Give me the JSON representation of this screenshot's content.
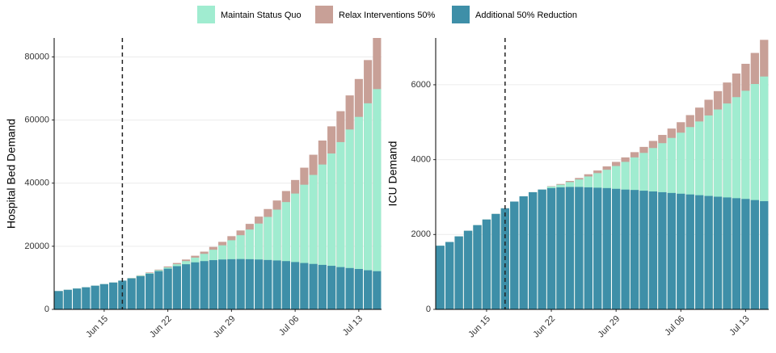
{
  "chart_data": [
    {
      "type": "bar",
      "y_label": "Hospital Bed Demand",
      "categories": [
        null,
        null,
        null,
        null,
        null,
        "Jun 15",
        null,
        null,
        null,
        null,
        null,
        null,
        "Jun 22",
        null,
        null,
        null,
        null,
        null,
        null,
        "Jun 29",
        null,
        null,
        null,
        null,
        null,
        null,
        "Jul 06",
        null,
        null,
        null,
        null,
        null,
        null,
        "Jul 13",
        null,
        null
      ],
      "vline_at": 7,
      "ylim": [
        0,
        86000
      ],
      "yticks": [
        0,
        20000,
        40000,
        60000,
        80000
      ],
      "series": [
        {
          "name": "Maintain Status Quo",
          "color": "#a0ecd0",
          "values": [
            5800,
            6200,
            6600,
            7000,
            7500,
            8000,
            8500,
            9100,
            9900,
            10700,
            11500,
            12400,
            13300,
            14300,
            15300,
            16400,
            17600,
            18900,
            20300,
            21900,
            23500,
            25300,
            27200,
            29300,
            31600,
            34000,
            36700,
            39500,
            42600,
            45900,
            49400,
            53000,
            57000,
            61000,
            65300,
            69800
          ]
        },
        {
          "name": "Relax Interventions 50%",
          "color": "#c8a097",
          "values": [
            5800,
            6200,
            6600,
            7000,
            7500,
            8000,
            8500,
            9100,
            9950,
            10800,
            11700,
            12600,
            13600,
            14700,
            15800,
            17000,
            18300,
            19800,
            21400,
            23200,
            25000,
            27100,
            29400,
            31800,
            34500,
            37500,
            41000,
            44900,
            49000,
            53500,
            58000,
            62800,
            67800,
            73000,
            79000,
            86000
          ]
        },
        {
          "name": "Additional 50% Reduction",
          "color": "#3e8fa8",
          "values": [
            5800,
            6200,
            6600,
            7000,
            7500,
            8000,
            8500,
            9100,
            9800,
            10500,
            11300,
            12100,
            12900,
            13700,
            14300,
            14900,
            15300,
            15600,
            15800,
            15900,
            15950,
            15900,
            15800,
            15650,
            15500,
            15300,
            15000,
            14700,
            14400,
            14100,
            13800,
            13400,
            13100,
            12800,
            12400,
            12100
          ]
        }
      ]
    },
    {
      "type": "bar",
      "y_label": "ICU Demand",
      "categories": [
        null,
        null,
        null,
        null,
        null,
        "Jun 15",
        null,
        null,
        null,
        null,
        null,
        null,
        "Jun 22",
        null,
        null,
        null,
        null,
        null,
        null,
        "Jun 29",
        null,
        null,
        null,
        null,
        null,
        null,
        "Jul 06",
        null,
        null,
        null,
        null,
        null,
        null,
        "Jul 13",
        null,
        null
      ],
      "vline_at": 7,
      "ylim": [
        0,
        7250
      ],
      "yticks": [
        0,
        2000,
        4000,
        6000
      ],
      "series": [
        {
          "color": "#a0ecd0",
          "values": [
            1700,
            1800,
            1950,
            2100,
            2250,
            2400,
            2550,
            2700,
            2880,
            3020,
            3130,
            3200,
            3280,
            3330,
            3400,
            3470,
            3550,
            3640,
            3730,
            3830,
            3940,
            4060,
            4180,
            4310,
            4440,
            4580,
            4720,
            4870,
            5020,
            5180,
            5340,
            5500,
            5670,
            5840,
            6020,
            6220
          ]
        },
        {
          "color": "#c8a097",
          "values": [
            1700,
            1800,
            1950,
            2100,
            2250,
            2400,
            2550,
            2700,
            2880,
            3020,
            3130,
            3200,
            3290,
            3350,
            3430,
            3510,
            3610,
            3710,
            3820,
            3940,
            4060,
            4200,
            4340,
            4500,
            4660,
            4830,
            5000,
            5190,
            5390,
            5600,
            5830,
            6060,
            6300,
            6560,
            6850,
            7200
          ]
        },
        {
          "color": "#3e8fa8",
          "values": [
            1700,
            1800,
            1950,
            2100,
            2250,
            2400,
            2550,
            2700,
            2880,
            3020,
            3130,
            3200,
            3240,
            3260,
            3270,
            3270,
            3260,
            3250,
            3240,
            3220,
            3200,
            3190,
            3170,
            3150,
            3130,
            3110,
            3090,
            3070,
            3050,
            3030,
            3010,
            2990,
            2970,
            2950,
            2920,
            2890
          ]
        }
      ]
    }
  ]
}
